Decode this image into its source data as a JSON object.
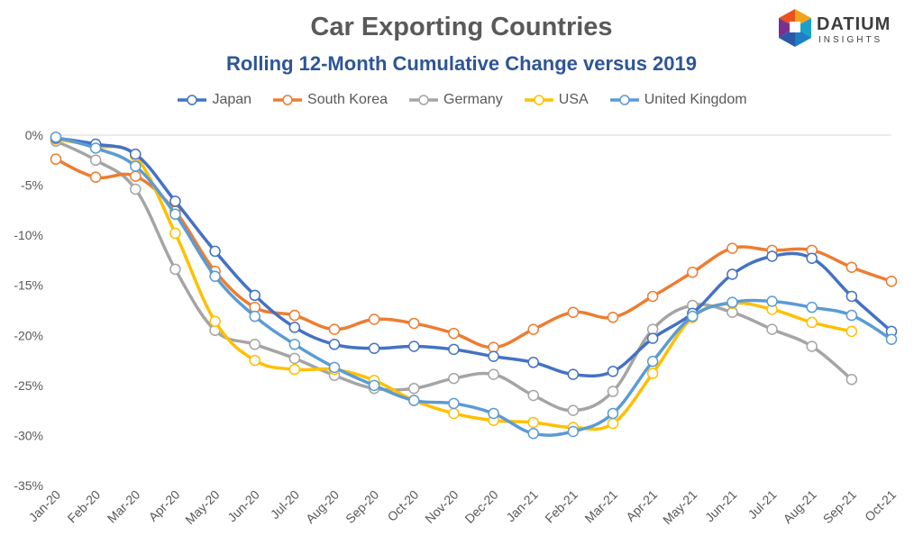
{
  "chart_data": {
    "type": "line",
    "title": "Car Exporting Countries",
    "subtitle": "Rolling 12-Month Cumulative Change versus 2019",
    "categories": [
      "Jan-20",
      "Feb-20",
      "Mar-20",
      "Apr-20",
      "May-20",
      "Jun-20",
      "Jul-20",
      "Aug-20",
      "Sep-20",
      "Oct-20",
      "Nov-20",
      "Dec-20",
      "Jan-21",
      "Feb-21",
      "Mar-21",
      "Apr-21",
      "May-21",
      "Jun-21",
      "Jul-21",
      "Aug-21",
      "Sep-21",
      "Oct-21"
    ],
    "ylim": [
      -35,
      0
    ],
    "yticks": [
      0,
      -5,
      -10,
      -15,
      -20,
      -25,
      -30,
      -35
    ],
    "ytick_labels": [
      "0%",
      "-5%",
      "-10%",
      "-15%",
      "-20%",
      "-25%",
      "-30%",
      "-35%"
    ],
    "grid": "top-line-only",
    "legend_position": "top",
    "series": [
      {
        "name": "Japan",
        "color": "#4472c4",
        "values": [
          -0.3,
          -0.9,
          -1.9,
          -6.6,
          -11.6,
          -16.0,
          -19.2,
          -20.9,
          -21.3,
          -21.1,
          -21.4,
          -22.1,
          -22.7,
          -23.9,
          -23.6,
          -20.3,
          -17.8,
          -13.9,
          -12.1,
          -12.3,
          -16.1,
          -19.6
        ]
      },
      {
        "name": "South Korea",
        "color": "#ed7d31",
        "values": [
          -2.4,
          -4.2,
          -4.1,
          -7.6,
          -13.6,
          -17.2,
          -18.0,
          -19.4,
          -18.4,
          -18.8,
          -19.8,
          -21.2,
          -19.4,
          -17.7,
          -18.2,
          -16.1,
          -13.7,
          -11.3,
          -11.5,
          -11.5,
          -13.2,
          -14.6
        ]
      },
      {
        "name": "Germany",
        "color": "#a5a5a5",
        "values": [
          -0.6,
          -2.5,
          -5.4,
          -13.4,
          -19.5,
          -20.9,
          -22.3,
          -24.0,
          -25.3,
          -25.3,
          -24.3,
          -23.9,
          -26.0,
          -27.5,
          -25.6,
          -19.4,
          -17.0,
          -17.7,
          -19.4,
          -21.1,
          -24.4,
          null
        ]
      },
      {
        "name": "USA",
        "color": "#ffc000",
        "values": [
          -0.4,
          -1.1,
          -2.1,
          -9.8,
          -18.6,
          -22.5,
          -23.4,
          -23.4,
          -24.5,
          -26.5,
          -27.8,
          -28.5,
          -28.7,
          -29.2,
          -28.8,
          -23.8,
          -18.2,
          -16.8,
          -17.4,
          -18.7,
          -19.6,
          null
        ]
      },
      {
        "name": "United Kingdom",
        "color": "#5b9bd5",
        "values": [
          -0.2,
          -1.3,
          -3.1,
          -7.9,
          -14.1,
          -18.1,
          -20.9,
          -23.2,
          -25.0,
          -26.5,
          -26.8,
          -27.8,
          -29.8,
          -29.6,
          -27.8,
          -22.6,
          -18.1,
          -16.7,
          -16.6,
          -17.2,
          -18.0,
          -20.4
        ]
      }
    ]
  },
  "logo": {
    "word": "DATIUM",
    "sub": "INSIGHTS"
  }
}
